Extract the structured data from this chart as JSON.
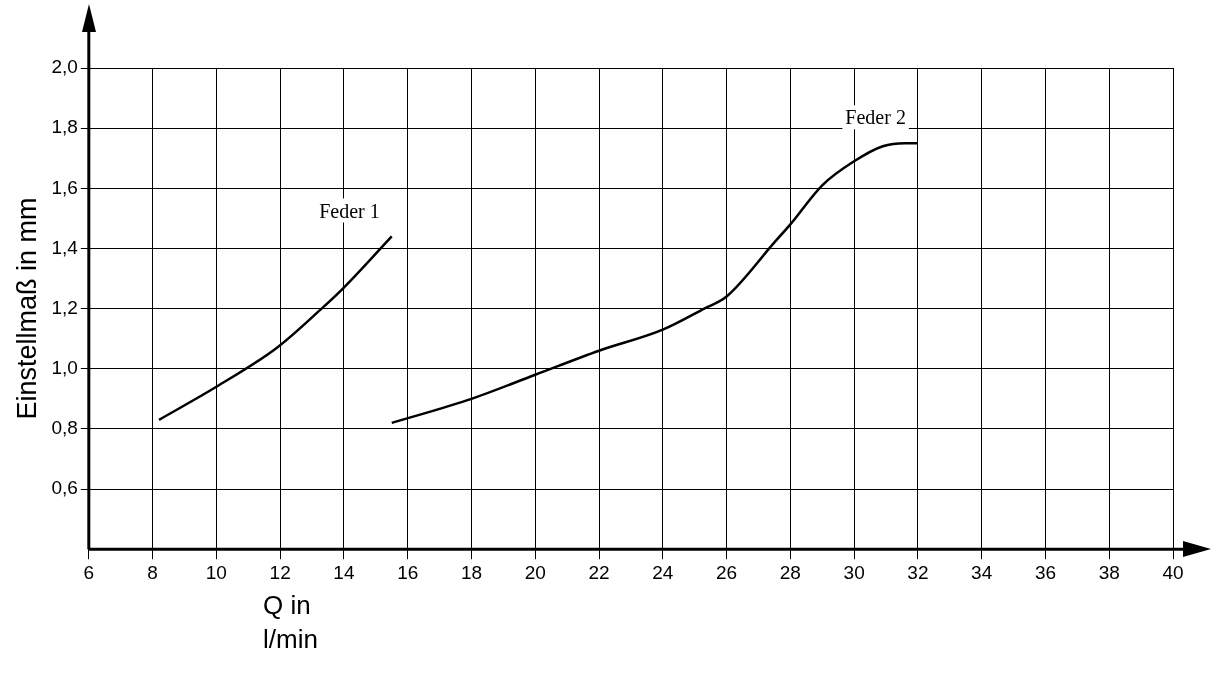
{
  "chart_data": {
    "type": "line",
    "xlabel": "Q in l/min",
    "ylabel": "Einstellmaß in mm",
    "xlim": [
      6,
      40
    ],
    "xticks": [
      6,
      8,
      10,
      12,
      14,
      16,
      18,
      20,
      22,
      24,
      26,
      28,
      30,
      32,
      34,
      36,
      38,
      40
    ],
    "ylim": [
      0.4,
      2.0
    ],
    "yticks": [
      {
        "value": 0.6,
        "label": "0,6"
      },
      {
        "value": 0.8,
        "label": "0,8"
      },
      {
        "value": 1.0,
        "label": "1,0"
      },
      {
        "value": 1.2,
        "label": "1,2"
      },
      {
        "value": 1.4,
        "label": "1,4"
      },
      {
        "value": 1.6,
        "label": "1,6"
      },
      {
        "value": 1.8,
        "label": "1,8"
      },
      {
        "value": 2.0,
        "label": "2,0"
      }
    ],
    "grid": true,
    "legend": false,
    "marker": "none",
    "line_style": "solid",
    "series": [
      {
        "name": "Feder 1",
        "color": "#000000",
        "x": [
          8.2,
          10,
          11.9,
          13.3,
          14,
          15.5
        ],
        "values": [
          0.83,
          0.94,
          1.07,
          1.2,
          1.27,
          1.44
        ]
      },
      {
        "name": "Feder 2",
        "color": "#000000",
        "x": [
          15.5,
          18,
          20,
          22,
          24,
          25.3,
          26,
          27.5,
          28,
          29,
          30,
          30.9,
          31.6,
          32
        ],
        "values": [
          0.82,
          0.9,
          0.98,
          1.06,
          1.13,
          1.2,
          1.24,
          1.42,
          1.48,
          1.61,
          1.69,
          1.74,
          1.75,
          1.75
        ]
      }
    ]
  }
}
